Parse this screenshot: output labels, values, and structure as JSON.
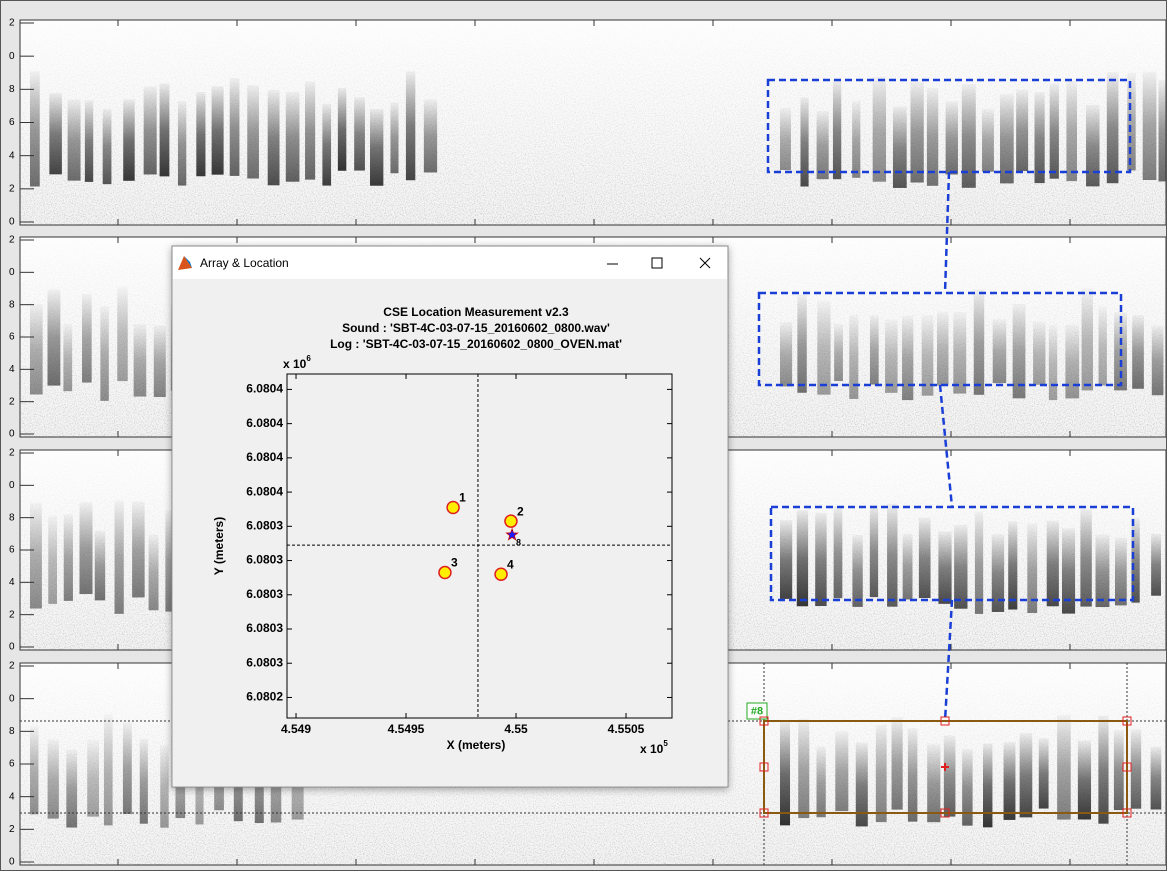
{
  "spectrogram": {
    "freq_labels": [
      "2",
      "0",
      "8",
      "6",
      "4",
      "2",
      "0"
    ],
    "selection_label": "#8"
  },
  "window": {
    "title": "Array & Location"
  },
  "chart_data": {
    "type": "scatter",
    "title": [
      "CSE Location Measurement v2.3",
      "Sound : 'SBT-4C-03-07-15_20160602_0800.wav'",
      "Log : 'SBT-4C-03-07-15_20160602_0800_OVEN.mat'"
    ],
    "x_label": "X (meters)",
    "y_label": "Y (meters)",
    "x_scale": {
      "base": "x 10",
      "exponent": "5"
    },
    "y_scale": {
      "base": "x 10",
      "exponent": "6"
    },
    "xlim": [
      4.548959,
      4.550709
    ],
    "ylim": [
      6.080228,
      6.080429
    ],
    "xticks": [
      4.549,
      4.5495,
      4.55,
      4.5505
    ],
    "yticks": [
      {
        "value": 6.08024,
        "label": "6.0802"
      },
      {
        "value": 6.08026,
        "label": "6.0803"
      },
      {
        "value": 6.08028,
        "label": "6.0803"
      },
      {
        "value": 6.0803,
        "label": "6.0803"
      },
      {
        "value": 6.08032,
        "label": "6.0803"
      },
      {
        "value": 6.08034,
        "label": "6.0803"
      },
      {
        "value": 6.08036,
        "label": "6.0804"
      },
      {
        "value": 6.08038,
        "label": "6.0804"
      },
      {
        "value": 6.0804,
        "label": "6.0804"
      },
      {
        "value": 6.08042,
        "label": "6.0804"
      }
    ],
    "points": [
      {
        "label": "1",
        "x": 4.549714,
        "y": 6.080351,
        "color": "#ffee00"
      },
      {
        "label": "2",
        "x": 4.549977,
        "y": 6.080343,
        "color": "#ffee00"
      },
      {
        "label": "3",
        "x": 4.549677,
        "y": 6.080313,
        "color": "#ffee00"
      },
      {
        "label": "4",
        "x": 4.549932,
        "y": 6.080312,
        "color": "#ffee00"
      }
    ],
    "estimate": {
      "label": "8",
      "x": 4.549982,
      "y": 6.080335,
      "color": "#1a1aff"
    },
    "crosshair": {
      "x": 4.549827,
      "y": 6.080329
    }
  }
}
